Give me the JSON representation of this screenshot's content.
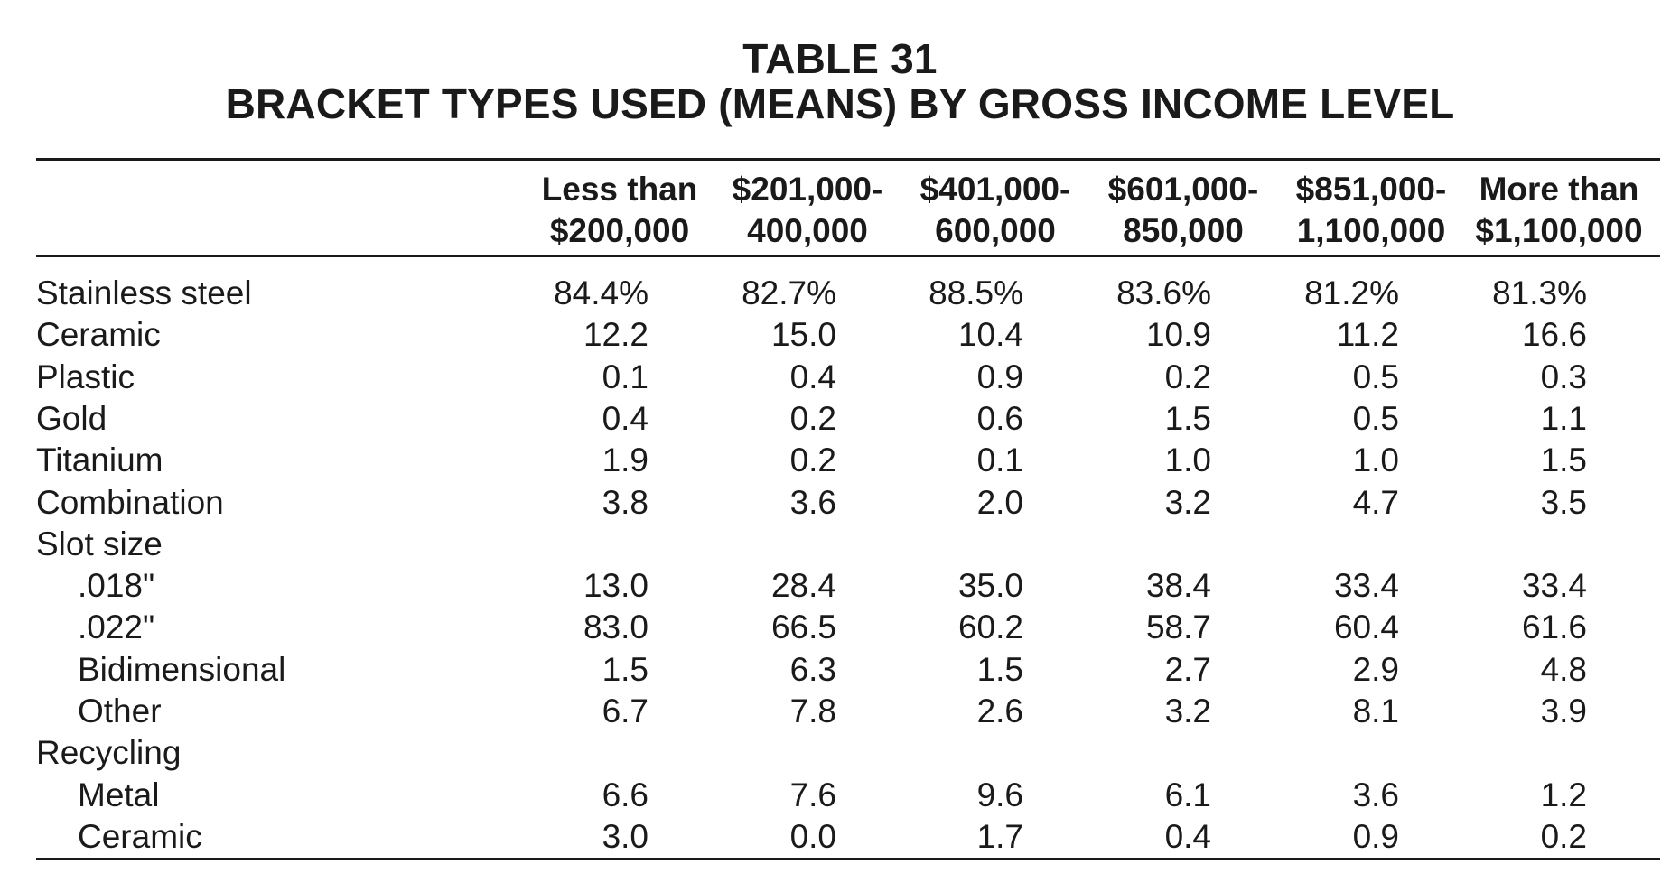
{
  "title": {
    "line1": "TABLE 31",
    "line2": "BRACKET TYPES USED (MEANS) BY GROSS INCOME LEVEL"
  },
  "columns": [
    {
      "line1": "Less than",
      "line2": "$200,000"
    },
    {
      "line1": "$201,000-",
      "line2": "400,000"
    },
    {
      "line1": "$401,000-",
      "line2": "600,000"
    },
    {
      "line1": "$601,000-",
      "line2": "850,000"
    },
    {
      "line1": "$851,000-",
      "line2": "1,100,000"
    },
    {
      "line1": "More than",
      "line2": "$1,100,000"
    }
  ],
  "rows": [
    {
      "label": "Stainless steel",
      "indent": false,
      "values": [
        "84.4%",
        "82.7%",
        "88.5%",
        "83.6%",
        "81.2%",
        "81.3%"
      ]
    },
    {
      "label": "Ceramic",
      "indent": false,
      "values": [
        "12.2",
        "15.0",
        "10.4",
        "10.9",
        "11.2",
        "16.6"
      ]
    },
    {
      "label": "Plastic",
      "indent": false,
      "values": [
        "0.1",
        "0.4",
        "0.9",
        "0.2",
        "0.5",
        "0.3"
      ]
    },
    {
      "label": "Gold",
      "indent": false,
      "values": [
        "0.4",
        "0.2",
        "0.6",
        "1.5",
        "0.5",
        "1.1"
      ]
    },
    {
      "label": "Titanium",
      "indent": false,
      "values": [
        "1.9",
        "0.2",
        "0.1",
        "1.0",
        "1.0",
        "1.5"
      ]
    },
    {
      "label": "Combination",
      "indent": false,
      "values": [
        "3.8",
        "3.6",
        "2.0",
        "3.2",
        "4.7",
        "3.5"
      ]
    },
    {
      "label": "Slot size",
      "indent": false,
      "values": [
        "",
        "",
        "",
        "",
        "",
        ""
      ]
    },
    {
      "label": ".018\"",
      "indent": true,
      "values": [
        "13.0",
        "28.4",
        "35.0",
        "38.4",
        "33.4",
        "33.4"
      ]
    },
    {
      "label": ".022\"",
      "indent": true,
      "values": [
        "83.0",
        "66.5",
        "60.2",
        "58.7",
        "60.4",
        "61.6"
      ]
    },
    {
      "label": "Bidimensional",
      "indent": true,
      "values": [
        "1.5",
        "6.3",
        "1.5",
        "2.7",
        "2.9",
        "4.8"
      ]
    },
    {
      "label": "Other",
      "indent": true,
      "values": [
        "6.7",
        "7.8",
        "2.6",
        "3.2",
        "8.1",
        "3.9"
      ]
    },
    {
      "label": "Recycling",
      "indent": false,
      "values": [
        "",
        "",
        "",
        "",
        "",
        ""
      ]
    },
    {
      "label": "Metal",
      "indent": true,
      "values": [
        "6.6",
        "7.6",
        "9.6",
        "6.1",
        "3.6",
        "1.2"
      ]
    },
    {
      "label": "Ceramic",
      "indent": true,
      "values": [
        "3.0",
        "0.0",
        "1.7",
        "0.4",
        "0.9",
        "0.2"
      ]
    }
  ]
}
